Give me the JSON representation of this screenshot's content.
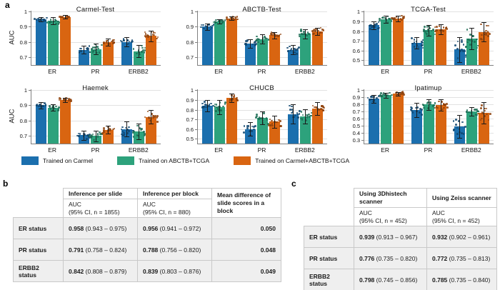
{
  "panel_labels": {
    "a": "a",
    "b": "b",
    "c": "c"
  },
  "legend": [
    {
      "label": "Trained on Carmel",
      "color": "#1b6fae",
      "dot_color": "#0f456e"
    },
    {
      "label": "Trained on ABCTB+TCGA",
      "color": "#2da27c",
      "dot_color": "#1a6b52"
    },
    {
      "label": "Trained on Carmel+ABCTB+TCGA",
      "color": "#d96511",
      "dot_color": "#8f420c"
    }
  ],
  "chart_data": [
    {
      "type": "bar",
      "title": "Carmel-Test",
      "ylabel": "AUC",
      "categories": [
        "ER",
        "PR",
        "ERBB2"
      ],
      "ylim": [
        0.65,
        1.005
      ],
      "yticks": [
        0.7,
        0.8,
        0.9,
        1
      ],
      "series": [
        {
          "name": "Trained on Carmel",
          "values": [
            0.95,
            0.75,
            0.8
          ],
          "err": [
            0.015,
            0.025,
            0.03
          ]
        },
        {
          "name": "Trained on ABCTB+TCGA",
          "values": [
            0.94,
            0.755,
            0.74
          ],
          "err": [
            0.025,
            0.035,
            0.04
          ]
        },
        {
          "name": "Trained on Carmel+ABCTB+TCGA",
          "values": [
            0.965,
            0.8,
            0.84
          ],
          "err": [
            0.012,
            0.022,
            0.035
          ]
        }
      ]
    },
    {
      "type": "bar",
      "title": "ABCTB-Test",
      "ylabel": "",
      "categories": [
        "ER",
        "PR",
        "ERBB2"
      ],
      "ylim": [
        0.65,
        1.005
      ],
      "yticks": [
        0.7,
        0.8,
        0.9,
        1
      ],
      "series": [
        {
          "name": "Trained on Carmel",
          "values": [
            0.9,
            0.79,
            0.75
          ],
          "err": [
            0.02,
            0.03,
            0.03
          ]
        },
        {
          "name": "Trained on ABCTB+TCGA",
          "values": [
            0.935,
            0.82,
            0.855
          ],
          "err": [
            0.015,
            0.03,
            0.03
          ]
        },
        {
          "name": "Trained on Carmel+ABCTB+TCGA",
          "values": [
            0.955,
            0.845,
            0.87
          ],
          "err": [
            0.012,
            0.02,
            0.025
          ]
        }
      ]
    },
    {
      "type": "bar",
      "title": "TCGA-Test",
      "ylabel": "",
      "categories": [
        "ER",
        "PR",
        "ERBB2"
      ],
      "ylim": [
        0.45,
        1.01
      ],
      "yticks": [
        0.5,
        0.6,
        0.7,
        0.8,
        0.9,
        1
      ],
      "series": [
        {
          "name": "Trained on Carmel",
          "values": [
            0.86,
            0.68,
            0.61
          ],
          "err": [
            0.04,
            0.06,
            0.13
          ]
        },
        {
          "name": "Trained on ABCTB+TCGA",
          "values": [
            0.92,
            0.81,
            0.72
          ],
          "err": [
            0.035,
            0.055,
            0.11
          ]
        },
        {
          "name": "Trained on Carmel+ABCTB+TCGA",
          "values": [
            0.93,
            0.82,
            0.79
          ],
          "err": [
            0.03,
            0.05,
            0.1
          ]
        }
      ]
    },
    {
      "type": "bar",
      "title": "Haemek",
      "ylabel": "AUC",
      "categories": [
        "ER",
        "PR",
        "ERBB2"
      ],
      "ylim": [
        0.65,
        1.005
      ],
      "yticks": [
        0.7,
        0.8,
        0.9,
        1
      ],
      "series": [
        {
          "name": "Trained on Carmel",
          "values": [
            0.9,
            0.705,
            0.745
          ],
          "err": [
            0.02,
            0.03,
            0.05
          ]
        },
        {
          "name": "Trained on ABCTB+TCGA",
          "values": [
            0.885,
            0.7,
            0.73
          ],
          "err": [
            0.02,
            0.035,
            0.05
          ]
        },
        {
          "name": "Trained on Carmel+ABCTB+TCGA",
          "values": [
            0.935,
            0.74,
            0.825
          ],
          "err": [
            0.015,
            0.025,
            0.045
          ]
        }
      ]
    },
    {
      "type": "bar",
      "title": "CHUCB",
      "ylabel": "",
      "categories": [
        "ER",
        "PR",
        "ERBB2"
      ],
      "ylim": [
        0.45,
        1.01
      ],
      "yticks": [
        0.5,
        0.6,
        0.7,
        0.8,
        0.9,
        1
      ],
      "series": [
        {
          "name": "Trained on Carmel",
          "values": [
            0.84,
            0.6,
            0.755
          ],
          "err": [
            0.06,
            0.07,
            0.1
          ]
        },
        {
          "name": "Trained on ABCTB+TCGA",
          "values": [
            0.825,
            0.715,
            0.73
          ],
          "err": [
            0.075,
            0.065,
            0.075
          ]
        },
        {
          "name": "Trained on Carmel+ABCTB+TCGA",
          "values": [
            0.92,
            0.675,
            0.81
          ],
          "err": [
            0.045,
            0.06,
            0.065
          ]
        }
      ]
    },
    {
      "type": "bar",
      "title": "Ipatimup",
      "ylabel": "",
      "categories": [
        "ER",
        "PR",
        "ERBB2"
      ],
      "ylim": [
        0.25,
        1.01
      ],
      "yticks": [
        0.3,
        0.4,
        0.5,
        0.6,
        0.7,
        0.8,
        0.9,
        1
      ],
      "series": [
        {
          "name": "Trained on Carmel",
          "values": [
            0.88,
            0.72,
            0.49
          ],
          "err": [
            0.055,
            0.1,
            0.16
          ]
        },
        {
          "name": "Trained on ABCTB+TCGA",
          "values": [
            0.93,
            0.8,
            0.7
          ],
          "err": [
            0.035,
            0.075,
            0.06
          ]
        },
        {
          "name": "Trained on Carmel+ABCTB+TCGA",
          "values": [
            0.95,
            0.79,
            0.68
          ],
          "err": [
            0.025,
            0.08,
            0.15
          ]
        }
      ]
    }
  ],
  "table_b": {
    "columns": {
      "col1": "Inference per slide",
      "col1_sub1": "AUC",
      "col1_sub2": "(95% CI, n = 1855)",
      "col2": "Inference per block",
      "col2_sub1": "AUC",
      "col2_sub2": "(95% CI, n = 880)",
      "col3": "Mean difference of slide scores in a block"
    },
    "rows": [
      {
        "label": "ER status",
        "slide_auc": "0.958",
        "slide_ci": "(0.943 – 0.975)",
        "block_auc": "0.956",
        "block_ci": "(0.941 – 0.972)",
        "diff": "0.050"
      },
      {
        "label": "PR status",
        "slide_auc": "0.791",
        "slide_ci": "(0.758 – 0.824)",
        "block_auc": "0.788",
        "block_ci": "(0.756 – 0.820)",
        "diff": "0.048"
      },
      {
        "label": "ERBB2 status",
        "slide_auc": "0.842",
        "slide_ci": "(0.808 – 0.879)",
        "block_auc": "0.839",
        "block_ci": "(0.803 – 0.876)",
        "diff": "0.049"
      }
    ]
  },
  "table_c": {
    "columns": {
      "col1": "Using 3Dhistech scanner",
      "col1_sub1": "AUC",
      "col1_sub2": "(95% CI, n = 452)",
      "col2": "Using Zeiss scanner",
      "col2_sub1": "AUC",
      "col2_sub2": "(95% CI, n = 452)"
    },
    "rows": [
      {
        "label": "ER status",
        "c1_auc": "0.939",
        "c1_ci": "(0.913 – 0.967)",
        "c2_auc": "0.932",
        "c2_ci": "(0.902 – 0.961)"
      },
      {
        "label": "PR status",
        "c1_auc": "0.776",
        "c1_ci": "(0.735 – 0.820)",
        "c2_auc": "0.772",
        "c2_ci": "(0.735 – 0.813)"
      },
      {
        "label": "ERBB2 status",
        "c1_auc": "0.798",
        "c1_ci": "(0.745 – 0.856)",
        "c2_auc": "0.785",
        "c2_ci": "(0.735 – 0.840)"
      }
    ]
  }
}
